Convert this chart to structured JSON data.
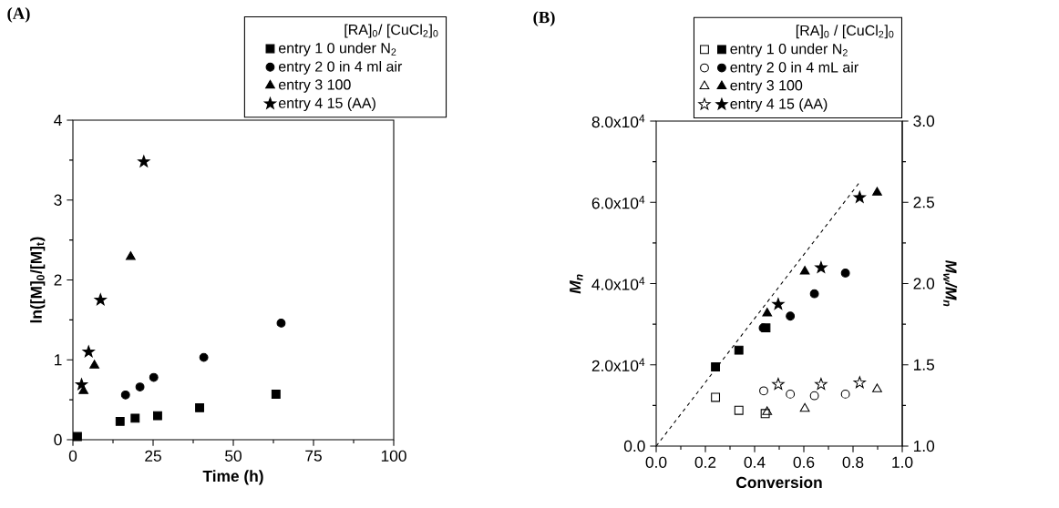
{
  "chart_data": [
    {
      "type": "scatter",
      "title": "(A)",
      "xlabel": "Time (h)",
      "ylabel": "ln([M]$_{0}$/[M]$_{t}$)",
      "legend_title": "[RA]$_{0}$/ [CuCl$_{2}$]$_{0}$",
      "legend": "top right",
      "xlim": [
        0,
        100
      ],
      "xticks": [
        0,
        25,
        50,
        75,
        100
      ],
      "ylim": [
        0,
        4
      ],
      "yticks": [
        0,
        1,
        2,
        3,
        4
      ],
      "series": [
        {
          "name": "entry 1   0  under N$_{2}$",
          "color": "#000000",
          "marker": "square",
          "x": [
            1.4,
            14.7,
            19.4,
            26.4,
            39.5,
            63.3
          ],
          "values": [
            0.04,
            0.23,
            0.27,
            0.3,
            0.4,
            0.57
          ]
        },
        {
          "name": "entry 2   0  in 4 ml air",
          "color": "#000000",
          "marker": "circle",
          "x": [
            16.4,
            20.9,
            25.2,
            40.8,
            64.9
          ],
          "values": [
            0.56,
            0.66,
            0.78,
            1.03,
            1.46
          ]
        },
        {
          "name": "entry 3   100",
          "color": "#000000",
          "marker": "triangle",
          "x": [
            3.3,
            6.7,
            18.0
          ],
          "values": [
            0.61,
            0.93,
            2.29
          ]
        },
        {
          "name": "entry 4   15 (AA)",
          "color": "#000000",
          "marker": "star",
          "x": [
            2.7,
            4.9,
            8.6,
            22.1
          ],
          "values": [
            0.69,
            1.1,
            1.75,
            3.48
          ]
        }
      ]
    },
    {
      "type": "scatter",
      "title": "(B)",
      "xlabel": "Conversion",
      "ylabel": "M$_{n}$",
      "y2label": "M$_{w}$/M$_{n}$",
      "legend_title": "[RA]$_{0}$ / [CuCl$_{2}$]$_{0}$",
      "legend": "top right",
      "xlim": [
        0,
        1
      ],
      "xticks": [
        {
          "value": 0,
          "label": "0.0"
        },
        {
          "value": 0.2,
          "label": "0.2"
        },
        {
          "value": 0.4,
          "label": "0.4"
        },
        {
          "value": 0.6,
          "label": "0.6"
        },
        {
          "value": 0.8,
          "label": "0.8"
        },
        {
          "value": 1,
          "label": "1.0"
        }
      ],
      "ylim": [
        0,
        80000
      ],
      "yticks": [
        {
          "value": 0,
          "label": "0.0"
        },
        {
          "value": 20000,
          "label": "2.0x10$^{4}$"
        },
        {
          "value": 40000,
          "label": "4.0x10$^{4}$"
        },
        {
          "value": 60000,
          "label": "6.0x10$^{4}$"
        },
        {
          "value": 80000,
          "label": "8.0x10$^{4}$"
        }
      ],
      "y2lim": [
        1,
        3
      ],
      "y2ticks": [
        {
          "value": 1,
          "label": "1.0"
        },
        {
          "value": 1.5,
          "label": "1.5"
        },
        {
          "value": 2,
          "label": "2.0"
        },
        {
          "value": 2.5,
          "label": "2.5"
        },
        {
          "value": 3,
          "label": "3.0"
        }
      ],
      "series": [
        {
          "type": "line",
          "line_style": "dashed",
          "marker": "none",
          "color": "#000000",
          "x": [
            0,
            0.83
          ],
          "values": [
            0,
            65200
          ]
        },
        {
          "name": "entry 1   0 under N$_{2}$",
          "color": "#000000",
          "marker": "square",
          "x": [
            0.241,
            0.336,
            0.446
          ],
          "values": [
            19500,
            23600,
            29100
          ]
        },
        {
          "name": "entry 2   0 in 4 mL air",
          "color": "#000000",
          "marker": "circle",
          "x": [
            0.435,
            0.545,
            0.643,
            0.769
          ],
          "values": [
            29100,
            32000,
            37500,
            42600
          ]
        },
        {
          "name": "entry 3   100",
          "color": "#000000",
          "marker": "triangle",
          "x": [
            0.451,
            0.604,
            0.898
          ],
          "values": [
            32700,
            43000,
            62400
          ]
        },
        {
          "name": "entry 4   15 (AA)",
          "color": "#000000",
          "marker": "star",
          "x": [
            0.496,
            0.67,
            0.827
          ],
          "values": [
            34900,
            43900,
            61200
          ]
        },
        {
          "axis": "y2",
          "color": "#000000",
          "marker": "square",
          "x": [
            0.241,
            0.336,
            0.443
          ],
          "values": [
            1.3,
            1.22,
            1.2
          ]
        },
        {
          "axis": "y2",
          "color": "#000000",
          "marker": "circle",
          "x": [
            0.437,
            0.545,
            0.643,
            0.769
          ],
          "values": [
            1.34,
            1.32,
            1.31,
            1.32
          ]
        },
        {
          "axis": "y2",
          "color": "#000000",
          "marker": "triangle",
          "x": [
            0.451,
            0.604,
            0.898
          ],
          "values": [
            1.21,
            1.23,
            1.35
          ]
        },
        {
          "axis": "y2",
          "color": "#000000",
          "marker": "star",
          "x": [
            0.496,
            0.67,
            0.827
          ],
          "values": [
            1.38,
            1.38,
            1.39
          ]
        }
      ]
    }
  ]
}
